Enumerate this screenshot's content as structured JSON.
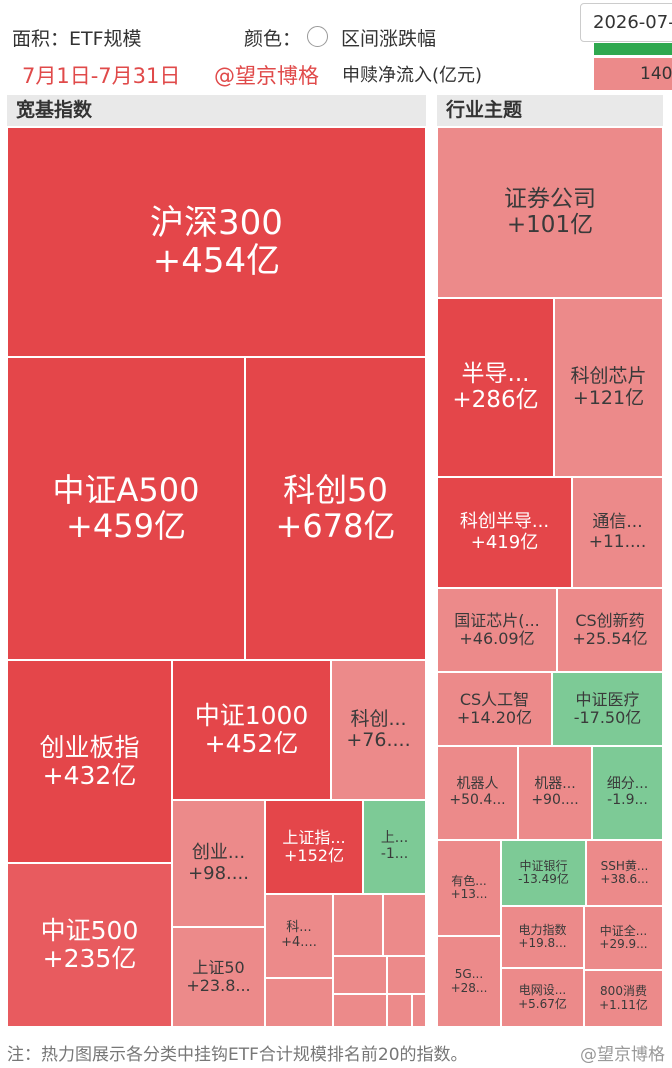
{
  "header": {
    "area_label": "面积：ETF规模",
    "color_label": "颜色：",
    "color_option": "区间涨跌幅",
    "date_range": "7月1日-7月31日",
    "watermark": "@望京博格",
    "metric": "申赎净流入(亿元)",
    "date_input": "2026-07-",
    "legend_value": "140"
  },
  "broad_index": {
    "title": "宽基指数",
    "tiles": [
      {
        "name": "沪深300",
        "value": "+454亿"
      },
      {
        "name": "中证A500",
        "value": "+459亿"
      },
      {
        "name": "科创50",
        "value": "+678亿"
      },
      {
        "name": "创业板指",
        "value": "+432亿"
      },
      {
        "name": "中证1000",
        "value": "+452亿"
      },
      {
        "name": "科创...",
        "value": "+76...."
      },
      {
        "name": "中证500",
        "value": "+235亿"
      },
      {
        "name": "创业...",
        "value": "+98...."
      },
      {
        "name": "上证指...",
        "value": "+152亿"
      },
      {
        "name": "上...",
        "value": "-1..."
      },
      {
        "name": "上证50",
        "value": "+23.8..."
      },
      {
        "name": "科...",
        "value": "+4...."
      }
    ]
  },
  "sector_theme": {
    "title": "行业主题",
    "tiles": [
      {
        "name": "证券公司",
        "value": "+101亿"
      },
      {
        "name": "半导...",
        "value": "+286亿"
      },
      {
        "name": "科创芯片",
        "value": "+121亿"
      },
      {
        "name": "科创半导...",
        "value": "+419亿"
      },
      {
        "name": "通信...",
        "value": "+11...."
      },
      {
        "name": "国证芯片(...",
        "value": "+46.09亿"
      },
      {
        "name": "CS创新药",
        "value": "+25.54亿"
      },
      {
        "name": "CS人工智",
        "value": "+14.20亿"
      },
      {
        "name": "中证医疗",
        "value": "-17.50亿"
      },
      {
        "name": "机器人",
        "value": "+50.4..."
      },
      {
        "name": "机器...",
        "value": "+90...."
      },
      {
        "name": "细分...",
        "value": "-1.9..."
      },
      {
        "name": "有色...",
        "value": "+13..."
      },
      {
        "name": "中证银行",
        "value": "-13.49亿"
      },
      {
        "name": "SSH黄...",
        "value": "+38.6..."
      },
      {
        "name": "电力指数",
        "value": "+19.8..."
      },
      {
        "name": "中证全...",
        "value": "+29.9..."
      },
      {
        "name": "5G...",
        "value": "+28..."
      },
      {
        "name": "电网设...",
        "value": "+5.67亿"
      },
      {
        "name": "800消费",
        "value": "+1.11亿"
      }
    ]
  },
  "footer": {
    "note": "注：热力图展示各分类中挂钩ETF合计规模排名前20的指数。",
    "watermark": "@望京博格"
  }
}
